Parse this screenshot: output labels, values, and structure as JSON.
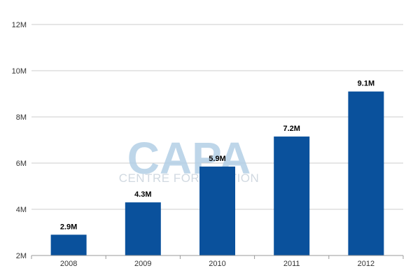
{
  "watermark": {
    "logo": "CAPA",
    "tagline": "CENTRE FOR AVIATION"
  },
  "chart_data": {
    "type": "bar",
    "categories": [
      "2008",
      "2009",
      "2010",
      "2011",
      "2012"
    ],
    "values": [
      2.9,
      4.3,
      5.85,
      7.15,
      9.1
    ],
    "data_labels": [
      "2.9M",
      "4.3M",
      "5.9M",
      "7.2M",
      "9.1M"
    ],
    "y_ticks": [
      2,
      4,
      6,
      8,
      10,
      12
    ],
    "y_tick_labels": [
      "2M",
      "4M",
      "6M",
      "8M",
      "10M",
      "12M"
    ],
    "ylim": [
      2,
      12
    ],
    "grid": true,
    "legend": "none",
    "title": "",
    "xlabel": "",
    "ylabel": "",
    "colors": {
      "bar": "#0a519c",
      "grid": "#cccccc",
      "axis": "#999999"
    }
  }
}
